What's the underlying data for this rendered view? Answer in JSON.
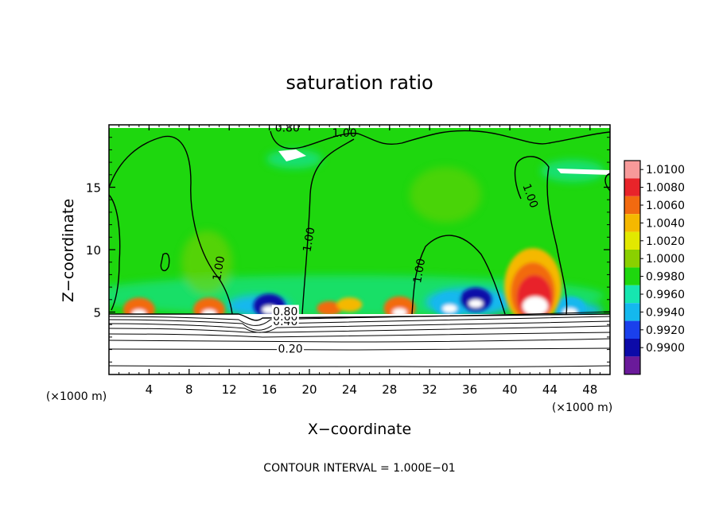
{
  "chart_data": {
    "type": "heatmap",
    "title": "saturation ratio",
    "xlabel": "X−coordinate",
    "ylabel": "Z−coordinate",
    "x_unit": "(×1000 m)",
    "z_unit": "(×1000 m)",
    "xlim": [
      0,
      50
    ],
    "ylim": [
      0,
      20
    ],
    "x_ticks": [
      4,
      8,
      12,
      16,
      20,
      24,
      28,
      32,
      36,
      40,
      44,
      48
    ],
    "y_ticks": [
      5,
      10,
      15
    ],
    "footer": "CONTOUR INTERVAL = 1.000E−01",
    "colorbar": {
      "levels": [
        "1.0100",
        "1.0080",
        "1.0060",
        "1.0040",
        "1.0020",
        "1.0000",
        "0.9980",
        "0.9960",
        "0.9940",
        "0.9920",
        "0.9900"
      ],
      "colors": [
        "#f79a9a",
        "#e8242a",
        "#f26a10",
        "#f5b800",
        "#e2e800",
        "#8ad000",
        "#1ed70e",
        "#16e6b0",
        "#14b8ee",
        "#1a40ec",
        "#0c0aa8",
        "#6a1a9a"
      ]
    },
    "contour_labels": [
      {
        "text": "0.20",
        "x": 18.1,
        "z": 2.0
      },
      {
        "text": "0.40",
        "x": 17.6,
        "z": 4.2
      },
      {
        "text": "0.60",
        "x": 17.6,
        "z": 4.6
      },
      {
        "text": "0.80",
        "x": 17.6,
        "z": 5.0
      },
      {
        "text": "0.80",
        "x": 17.8,
        "z": 19.7
      },
      {
        "text": "1.00",
        "x": 11.0,
        "z": 8.5
      },
      {
        "text": "1.00",
        "x": 20.0,
        "z": 10.8
      },
      {
        "text": "1.00",
        "x": 31.0,
        "z": 8.3
      },
      {
        "text": "1.00",
        "x": 42.0,
        "z": 14.3
      },
      {
        "text": "1.00",
        "x": 23.5,
        "z": 19.3
      }
    ],
    "surface_z": 5.0,
    "anomalies": [
      {
        "x": 3.0,
        "z": 5.2,
        "value": 1.006
      },
      {
        "x": 10.0,
        "z": 5.2,
        "value": 1.006
      },
      {
        "x": 16.0,
        "z": 5.5,
        "value": 0.991
      },
      {
        "x": 22.0,
        "z": 5.3,
        "value": 1.005
      },
      {
        "x": 24.0,
        "z": 5.6,
        "value": 1.004
      },
      {
        "x": 29.0,
        "z": 5.3,
        "value": 1.006
      },
      {
        "x": 34.0,
        "z": 5.6,
        "value": 0.994
      },
      {
        "x": 36.6,
        "z": 6.0,
        "value": 0.991
      },
      {
        "x": 42.3,
        "z": 7.0,
        "value": 1.008
      },
      {
        "x": 46.0,
        "z": 5.3,
        "value": 0.995
      }
    ]
  }
}
